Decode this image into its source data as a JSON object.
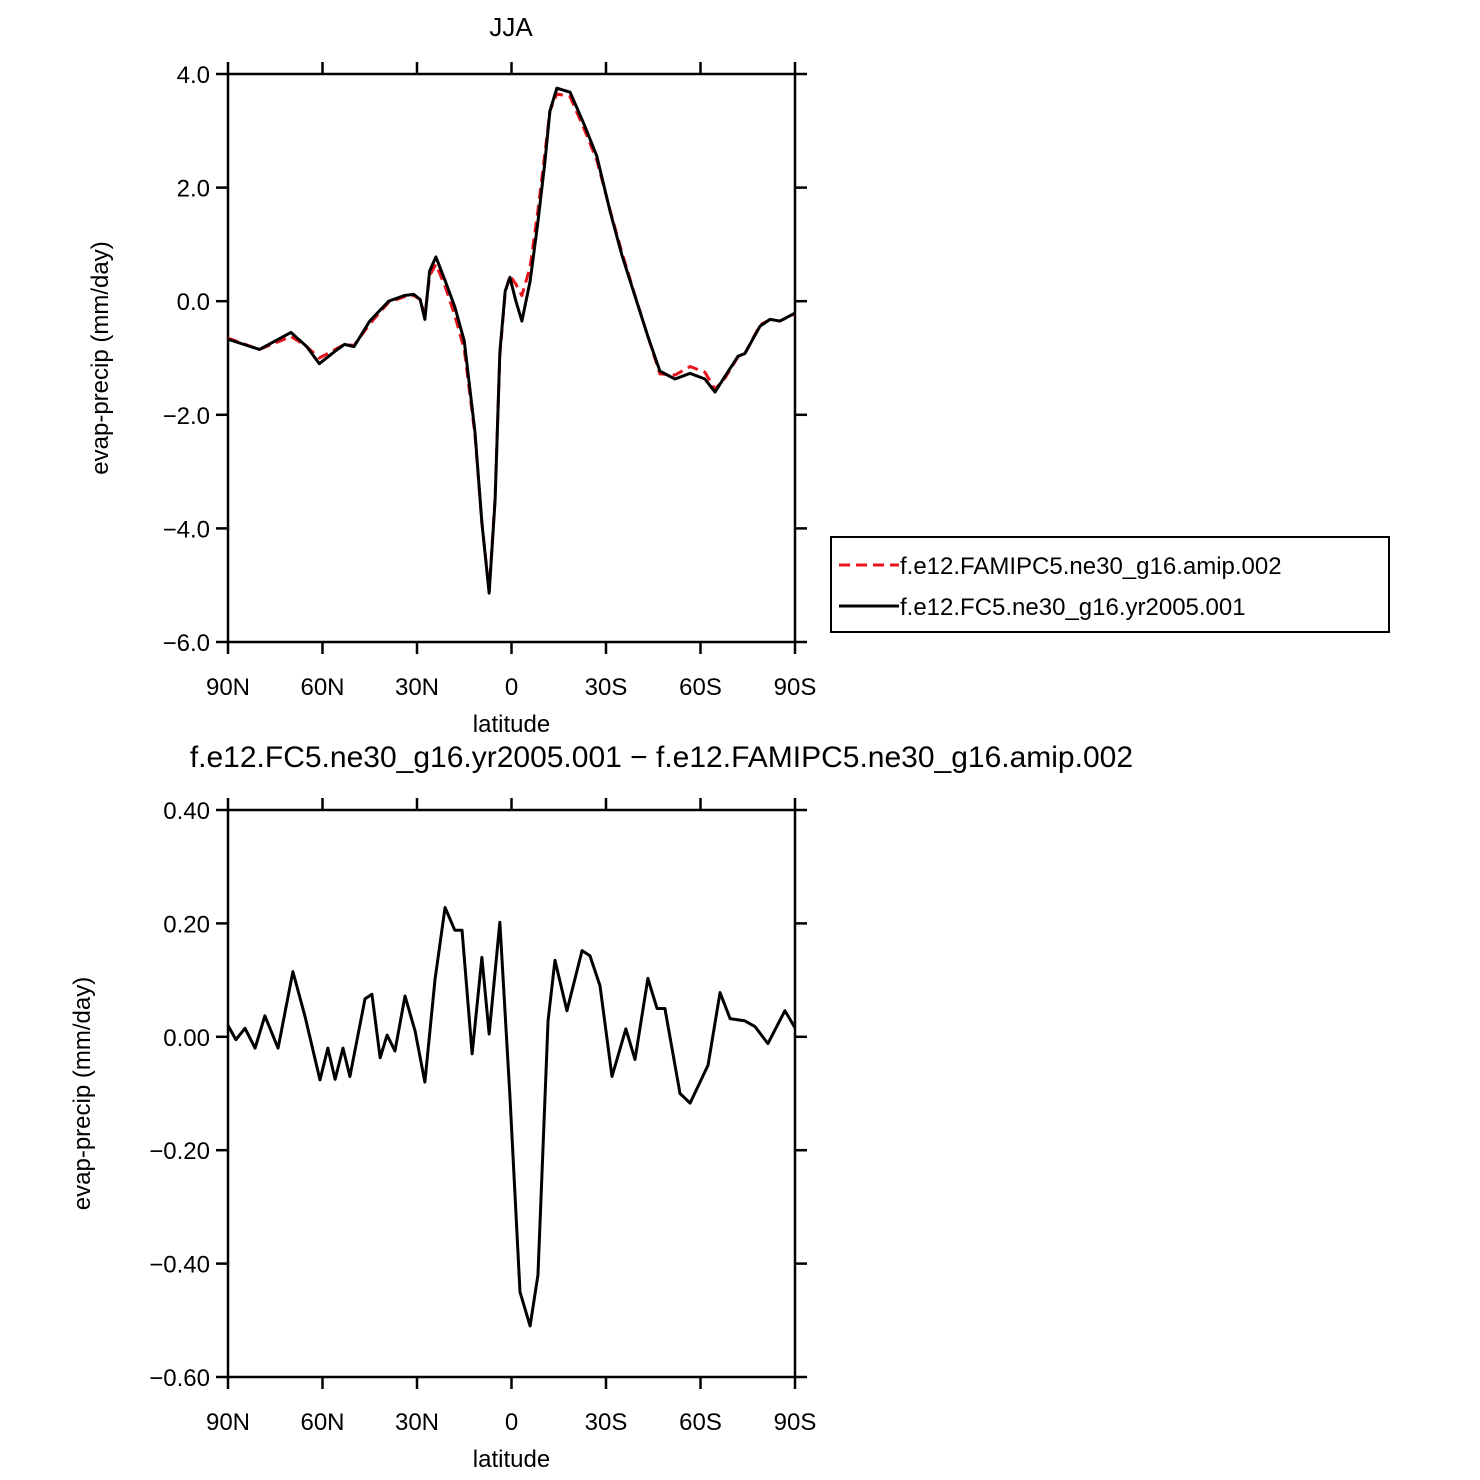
{
  "chart_data": [
    {
      "type": "line",
      "title": "JJA",
      "xlabel": "latitude",
      "ylabel": "evap-precip (mm/day)",
      "x": [
        90,
        80,
        70,
        65,
        61,
        56,
        53,
        50,
        45,
        39,
        34,
        31,
        29,
        27.5,
        26,
        24,
        21,
        18,
        15,
        11.6,
        9.4,
        7.1,
        5.2,
        3.7,
        2,
        0.5,
        -1.4,
        -3.3,
        -5.9,
        -8.4,
        -10.6,
        -12.2,
        -14.4,
        -18.6,
        -23.3,
        -27.1,
        -31.3,
        -35.1,
        -39.2,
        -43.3,
        -47.1,
        -51.9,
        -56.7,
        -61.4,
        -64.6,
        -67.8,
        -71.9,
        -74.1,
        -78.9,
        -82.1,
        -85.2,
        -90
      ],
      "xlim": [
        90,
        -90
      ],
      "xticks": [
        {
          "value": 90,
          "label": "90N"
        },
        {
          "value": 60,
          "label": "60N"
        },
        {
          "value": 30,
          "label": "30N"
        },
        0,
        {
          "value": -30,
          "label": "30S"
        },
        {
          "value": -60,
          "label": "60S"
        },
        {
          "value": -90,
          "label": "90S"
        }
      ],
      "ylim": [
        -6,
        4
      ],
      "yticks": [
        {
          "value": -6,
          "label": "−6.0"
        },
        {
          "value": -4,
          "label": "−4.0"
        },
        {
          "value": -2,
          "label": "−2.0"
        },
        {
          "value": 0,
          "label": "0.0"
        },
        {
          "value": 2,
          "label": "2.0"
        },
        {
          "value": 4,
          "label": "4.0"
        }
      ],
      "legend_position": "right",
      "series": [
        {
          "name": "f.e12.FAMIPC5.ne30_g16.amip.002",
          "color": "#e8141b",
          "linestyle": "dashed",
          "values": [
            -0.65,
            -0.85,
            -0.62,
            -0.8,
            -1.0,
            -0.85,
            -0.76,
            -0.78,
            -0.4,
            -0.02,
            0.08,
            0.1,
            0.03,
            -0.25,
            0.45,
            0.65,
            0.25,
            -0.25,
            -0.85,
            -2.35,
            -3.9,
            -5.1,
            -3.45,
            -0.95,
            0.15,
            0.45,
            0.3,
            0.1,
            0.6,
            1.6,
            2.6,
            3.35,
            3.65,
            3.6,
            3.0,
            2.48,
            1.6,
            0.85,
            0.1,
            -0.62,
            -1.28,
            -1.3,
            -1.15,
            -1.25,
            -1.55,
            -1.35,
            -0.98,
            -0.92,
            -0.42,
            -0.32,
            -0.35,
            -0.22
          ]
        },
        {
          "name": "f.e12.FC5.ne30_g16.yr2005.001",
          "color": "#000000",
          "linestyle": "solid",
          "values": [
            -0.67,
            -0.85,
            -0.55,
            -0.8,
            -1.1,
            -0.88,
            -0.76,
            -0.8,
            -0.35,
            0.0,
            0.1,
            0.12,
            0.03,
            -0.32,
            0.53,
            0.78,
            0.35,
            -0.1,
            -0.7,
            -2.3,
            -3.9,
            -5.14,
            -3.5,
            -0.9,
            0.18,
            0.42,
            0.0,
            -0.35,
            0.35,
            1.4,
            2.45,
            3.35,
            3.75,
            3.68,
            3.08,
            2.55,
            1.58,
            0.8,
            0.09,
            -0.62,
            -1.23,
            -1.37,
            -1.27,
            -1.37,
            -1.6,
            -1.32,
            -0.97,
            -0.92,
            -0.44,
            -0.32,
            -0.35,
            -0.21
          ]
        }
      ]
    },
    {
      "type": "line",
      "title": "f.e12.FC5.ne30_g16.yr2005.001 − f.e12.FAMIPC5.ne30_g16.amip.002",
      "xlabel": "latitude",
      "ylabel": "evap-precip (mm/day)",
      "x": [
        90,
        87.5,
        84.6,
        81.4,
        78.3,
        74.1,
        69.4,
        65.6,
        60.8,
        58.3,
        56,
        53.5,
        51.3,
        46.5,
        44.3,
        41.7,
        39.5,
        37,
        33.8,
        30.6,
        27.5,
        24.3,
        21.1,
        18,
        15.7,
        12.5,
        9.4,
        7.1,
        3.7,
        0.5,
        -2.7,
        -5.9,
        -8.4,
        -11.6,
        -13.8,
        -17.6,
        -22.4,
        -24.9,
        -28.1,
        -31.9,
        -36.3,
        -39.2,
        -43.3,
        -46.2,
        -48.7,
        -53.5,
        -56.7,
        -62.4,
        -66.2,
        -69.4,
        -74.1,
        -77.3,
        -81.4,
        -86.8,
        -90
      ],
      "xlim": [
        90,
        -90
      ],
      "xticks": [
        {
          "value": 90,
          "label": "90N"
        },
        {
          "value": 60,
          "label": "60N"
        },
        {
          "value": 30,
          "label": "30N"
        },
        0,
        {
          "value": -30,
          "label": "30S"
        },
        {
          "value": -60,
          "label": "60S"
        },
        {
          "value": -90,
          "label": "90S"
        }
      ],
      "ylim": [
        -0.6,
        0.4
      ],
      "yticks": [
        {
          "value": -0.6,
          "label": "−0.60"
        },
        {
          "value": -0.4,
          "label": "−0.40"
        },
        {
          "value": -0.2,
          "label": "−0.20"
        },
        {
          "value": 0,
          "label": "0.00"
        },
        {
          "value": 0.2,
          "label": "0.20"
        },
        {
          "value": 0.4,
          "label": "0.40"
        }
      ],
      "series": [
        {
          "color": "#000000",
          "linestyle": "solid",
          "values": [
            0.02,
            -0.005,
            0.015,
            -0.02,
            0.037,
            -0.02,
            0.115,
            0.037,
            -0.076,
            -0.02,
            -0.075,
            -0.02,
            -0.07,
            0.067,
            0.075,
            -0.037,
            0.003,
            -0.025,
            0.072,
            0.01,
            -0.08,
            0.1,
            0.228,
            0.188,
            0.188,
            -0.03,
            0.14,
            0.005,
            0.202,
            -0.105,
            -0.45,
            -0.51,
            -0.42,
            0.028,
            0.135,
            0.046,
            0.152,
            0.143,
            0.09,
            -0.07,
            0.014,
            -0.04,
            0.103,
            0.05,
            0.05,
            -0.1,
            -0.117,
            -0.05,
            0.078,
            0.032,
            0.028,
            0.018,
            -0.012,
            0.046,
            0.016
          ]
        }
      ]
    }
  ]
}
